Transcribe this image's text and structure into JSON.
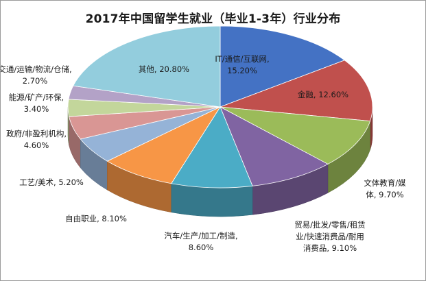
{
  "chart_data": {
    "type": "pie",
    "title": "2017年中国留学生就业（毕业1-3年）行业分布",
    "categories": [
      "IT/通信/互联网",
      "金融",
      "文体教育/媒体",
      "贸易/批发/零售/租赁业/快速消费品/耐用消费品",
      "汽车/生产/加工/制造",
      "自由职业",
      "工艺/美术",
      "政府/非盈利机构",
      "能源/矿产/环保",
      "交通/运输/物流/仓储",
      "其他"
    ],
    "values": [
      15.2,
      12.6,
      9.7,
      9.1,
      8.6,
      8.1,
      5.2,
      4.6,
      3.4,
      2.7,
      20.8
    ],
    "colors": [
      "#4472C4",
      "#C0504D",
      "#9BBB59",
      "#8064A2",
      "#4BACC6",
      "#F79646",
      "#95B3D7",
      "#D99694",
      "#C3D69B",
      "#B3A2C7",
      "#93CDDD"
    ],
    "data_labels": [
      [
        "IT/通信/互联网,",
        "15.20%"
      ],
      [
        "金融, 12.60%"
      ],
      [
        "文体教育/媒",
        "体, 9.70%"
      ],
      [
        "贸易/批发/零售/租赁",
        "业/快速消费品/耐用",
        "消费品, 9.10%"
      ],
      [
        "汽车/生产/加工/制造,",
        "8.60%"
      ],
      [
        "自由职业, 8.10%"
      ],
      [
        "工艺/美术, 5.20%"
      ],
      [
        "政府/非盈利机构,",
        "4.60%"
      ],
      [
        "能源/矿产/环保,",
        "3.40%"
      ],
      [
        "交通/运输/物流/仓储,",
        "2.70%"
      ],
      [
        "其他, 20.80%"
      ]
    ],
    "legend": "none",
    "style": "3d-pie"
  }
}
